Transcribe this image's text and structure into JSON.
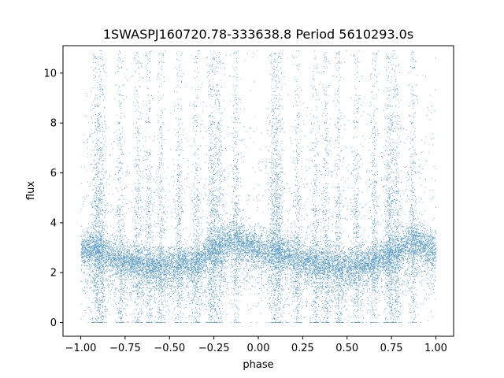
{
  "chart_data": {
    "type": "scatter",
    "title": "1SWASPJ160720.78-333638.8 Period 5610293.0s",
    "xlabel": "phase",
    "ylabel": "flux",
    "xlim": [
      -1.1,
      1.1
    ],
    "ylim": [
      -0.55,
      11.1
    ],
    "x_ticks": [
      -1.0,
      -0.75,
      -0.5,
      -0.25,
      0.0,
      0.25,
      0.5,
      0.75,
      1.0
    ],
    "x_tick_labels": [
      "−1.00",
      "−0.75",
      "−0.50",
      "−0.25",
      "0.00",
      "0.25",
      "0.50",
      "0.75",
      "1.00"
    ],
    "y_ticks": [
      0,
      2,
      4,
      6,
      8,
      10
    ],
    "y_tick_labels": [
      "0",
      "2",
      "4",
      "6",
      "8",
      "10"
    ],
    "grid": false,
    "legend": "none",
    "marker_color": "#1f77b4",
    "series": [
      {
        "name": "",
        "baseline_profile": {
          "phase": [
            -1.0,
            -0.95,
            -0.9,
            -0.85,
            -0.8,
            -0.75,
            -0.7,
            -0.65,
            -0.6,
            -0.55,
            -0.5,
            -0.45,
            -0.4,
            -0.35,
            -0.3,
            -0.25,
            -0.2,
            -0.15,
            -0.1,
            -0.05,
            0.0,
            0.05,
            0.1,
            0.15,
            0.2,
            0.25,
            0.3,
            0.35,
            0.4,
            0.45,
            0.5,
            0.55,
            0.6,
            0.65,
            0.7,
            0.75,
            0.8,
            0.85,
            0.9,
            0.95,
            1.0
          ],
          "flux": [
            2.9,
            3.0,
            2.9,
            2.8,
            2.6,
            2.5,
            2.5,
            2.4,
            2.4,
            2.3,
            2.3,
            2.4,
            2.4,
            2.4,
            2.7,
            2.9,
            3.1,
            3.3,
            3.3,
            3.1,
            3.0,
            2.9,
            2.9,
            2.8,
            2.7,
            2.6,
            2.5,
            2.4,
            2.4,
            2.3,
            2.3,
            2.4,
            2.4,
            2.5,
            2.7,
            2.8,
            3.0,
            3.2,
            3.3,
            3.1,
            2.9
          ]
        },
        "scatter_columns_phase": [
          -0.92,
          -0.9,
          -0.88,
          -0.78,
          -0.68,
          -0.62,
          -0.55,
          -0.45,
          -0.35,
          -0.27,
          -0.25,
          -0.22,
          -0.13,
          0.08,
          0.1,
          0.12,
          0.22,
          0.32,
          0.38,
          0.45,
          0.55,
          0.65,
          0.73,
          0.75,
          0.78,
          0.87
        ],
        "flux_max": 10.9,
        "flux_min": 0.0
      }
    ]
  }
}
